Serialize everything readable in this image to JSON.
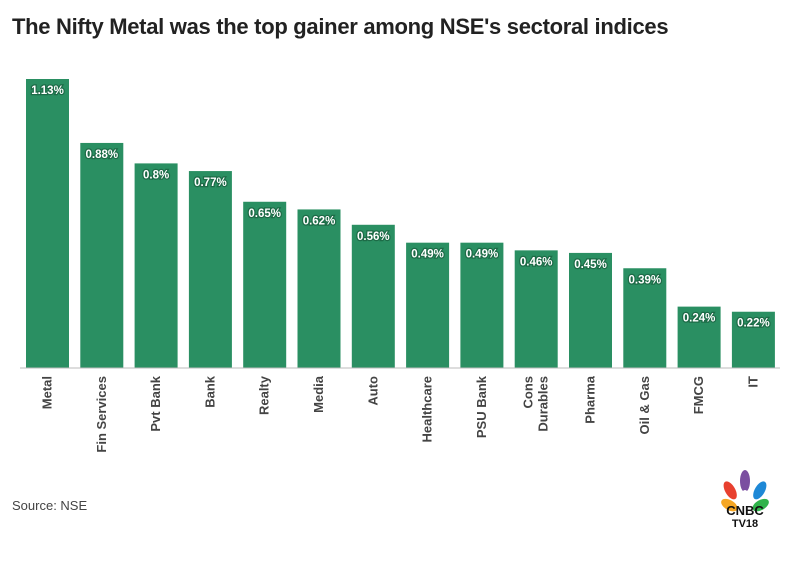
{
  "chart_data": {
    "type": "bar",
    "title": "The Nifty Metal was the top gainer among NSE's sectoral indices",
    "xlabel": "",
    "ylabel": "",
    "ylim": [
      0,
      1.13
    ],
    "grid": false,
    "categories": [
      "Metal",
      "Fin Services",
      "Pvt Bank",
      "Bank",
      "Realty",
      "Media",
      "Auto",
      "Healthcare",
      "PSU Bank",
      "Cons Durables",
      "Pharma",
      "Oil & Gas",
      "FMCG",
      "IT"
    ],
    "category_lines": [
      [
        "Metal"
      ],
      [
        "Fin Services"
      ],
      [
        "Pvt Bank"
      ],
      [
        "Bank"
      ],
      [
        "Realty"
      ],
      [
        "Media"
      ],
      [
        "Auto"
      ],
      [
        "Healthcare"
      ],
      [
        "PSU Bank"
      ],
      [
        "Cons",
        "Durables"
      ],
      [
        "Pharma"
      ],
      [
        "Oil & Gas"
      ],
      [
        "FMCG"
      ],
      [
        "IT"
      ]
    ],
    "values": [
      1.13,
      0.88,
      0.8,
      0.77,
      0.65,
      0.62,
      0.56,
      0.49,
      0.49,
      0.46,
      0.45,
      0.39,
      0.24,
      0.22
    ],
    "data_labels": [
      "1.13%",
      "0.88%",
      "0.8%",
      "0.77%",
      "0.65%",
      "0.62%",
      "0.56%",
      "0.49%",
      "0.49%",
      "0.46%",
      "0.45%",
      "0.39%",
      "0.24%",
      "0.22%"
    ],
    "bar_color": "#2a8f62"
  },
  "source": "Source: NSE",
  "logo": {
    "line1": "CNBC",
    "line2": "TV18"
  }
}
